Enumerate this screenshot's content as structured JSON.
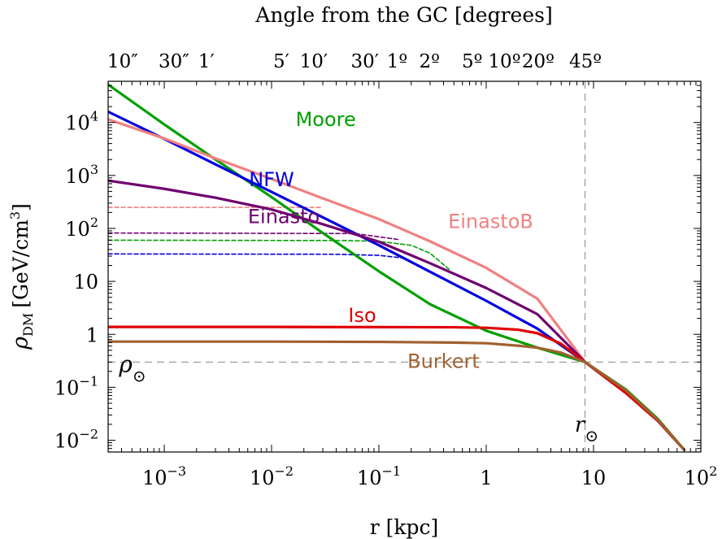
{
  "chart_data": {
    "type": "line",
    "title": "",
    "top_axis_label": "Angle from the GC [degrees]",
    "top_ticks": [
      {
        "label": "10″",
        "r": 0.00041
      },
      {
        "label": "30″",
        "r": 0.00123
      },
      {
        "label": "1′",
        "r": 0.00247
      },
      {
        "label": "5′",
        "r": 0.0123
      },
      {
        "label": "10′",
        "r": 0.0247
      },
      {
        "label": "30′",
        "r": 0.074
      },
      {
        "label": "1º",
        "r": 0.148
      },
      {
        "label": "2º",
        "r": 0.296
      },
      {
        "label": "5º",
        "r": 0.74
      },
      {
        "label": "10º",
        "r": 1.48
      },
      {
        "label": "20º",
        "r": 3.05
      },
      {
        "label": "45º",
        "r": 8.4
      }
    ],
    "xlabel": "r [kpc]",
    "ylabel": "ρ",
    "ylabel_sub": "DM",
    "ylabel_unit": "[GeV/cm",
    "ylabel_unit_sup": "3",
    "ylabel_unit_close": "]",
    "x_scale": "log",
    "y_scale": "log",
    "xlim": [
      0.0003,
      100
    ],
    "ylim": [
      0.006,
      60000
    ],
    "x_ticks": [
      {
        "value": 0.001,
        "label": "10",
        "sup": "−3"
      },
      {
        "value": 0.01,
        "label": "10",
        "sup": "−2"
      },
      {
        "value": 0.1,
        "label": "10",
        "sup": "−1"
      },
      {
        "value": 1,
        "label": "1",
        "sup": ""
      },
      {
        "value": 10,
        "label": "10",
        "sup": ""
      },
      {
        "value": 100,
        "label": "10",
        "sup": "2"
      }
    ],
    "y_ticks": [
      {
        "value": 0.01,
        "label": "10",
        "sup": "−2"
      },
      {
        "value": 0.1,
        "label": "10",
        "sup": "−1"
      },
      {
        "value": 1,
        "label": "1",
        "sup": ""
      },
      {
        "value": 10,
        "label": "10",
        "sup": ""
      },
      {
        "value": 100,
        "label": "10",
        "sup": "2"
      },
      {
        "value": 1000,
        "label": "10",
        "sup": "3"
      },
      {
        "value": 10000,
        "label": "10",
        "sup": "4"
      }
    ],
    "reference": {
      "r_sun": 8.33,
      "rho_sun": 0.3,
      "r_label": "r",
      "rho_label": "ρ",
      "sun_symbol": "⊙"
    },
    "series": [
      {
        "name": "Moore",
        "color": "#00a000",
        "label_r": 0.032,
        "label_rho": 11000,
        "x": [
          0.0003,
          0.001,
          0.003,
          0.01,
          0.03,
          0.1,
          0.3,
          1,
          3,
          8.33,
          20,
          40,
          70
        ],
        "y": [
          52000,
          9200,
          2000,
          390,
          82,
          15.5,
          3.7,
          1.17,
          0.56,
          0.3,
          0.091,
          0.025,
          0.0066
        ]
      },
      {
        "name": "NFW",
        "color": "#0000e0",
        "label_r": 0.01,
        "label_rho": 800,
        "x": [
          0.0003,
          0.001,
          0.003,
          0.01,
          0.03,
          0.1,
          0.3,
          1,
          3,
          8.33,
          20,
          40,
          70
        ],
        "y": [
          16000,
          4900,
          1620,
          490,
          162,
          48,
          15.2,
          4.3,
          1.28,
          0.3,
          0.079,
          0.023,
          0.0066
        ]
      },
      {
        "name": "EinastoB",
        "color": "#f08080",
        "label_r": 1.1,
        "label_rho": 130,
        "x": [
          0.0003,
          0.001,
          0.003,
          0.01,
          0.03,
          0.1,
          0.3,
          1,
          3,
          8.33,
          20,
          40,
          70
        ],
        "y": [
          11500,
          5000,
          2100,
          860,
          370,
          150,
          57,
          18,
          4.7,
          0.3,
          0.081,
          0.024,
          0.0066
        ]
      },
      {
        "name": "Einasto",
        "color": "#700070",
        "label_r": 0.013,
        "label_rho": 160,
        "x": [
          0.0003,
          0.001,
          0.003,
          0.01,
          0.03,
          0.1,
          0.3,
          1,
          3,
          8.33,
          20,
          40,
          70
        ],
        "y": [
          800,
          560,
          380,
          228,
          120,
          56,
          22,
          7.5,
          2.4,
          0.3,
          0.079,
          0.023,
          0.0066
        ]
      },
      {
        "name": "Iso",
        "color": "#e00000",
        "label_r": 0.07,
        "label_rho": 2.2,
        "x": [
          0.0003,
          0.001,
          0.01,
          0.1,
          0.5,
          1,
          2,
          3,
          5,
          8.33,
          20,
          40,
          70
        ],
        "y": [
          1.38,
          1.38,
          1.38,
          1.37,
          1.36,
          1.33,
          1.22,
          1.05,
          0.66,
          0.3,
          0.078,
          0.023,
          0.0066
        ]
      },
      {
        "name": "Burkert",
        "color": "#a06030",
        "label_r": 0.4,
        "label_rho": 0.3,
        "x": [
          0.0003,
          0.001,
          0.01,
          0.1,
          0.5,
          1,
          2,
          3,
          5,
          8.33,
          20,
          40,
          70
        ],
        "y": [
          0.73,
          0.73,
          0.73,
          0.72,
          0.7,
          0.68,
          0.61,
          0.56,
          0.45,
          0.3,
          0.088,
          0.024,
          0.0066
        ]
      },
      {
        "name": "",
        "color": "#f08080",
        "dashed": true,
        "x": [
          0.0003,
          0.03
        ],
        "y": [
          250,
          250
        ]
      },
      {
        "name": "",
        "color": "#700070",
        "dashed": true,
        "x": [
          0.0003,
          0.06,
          0.15
        ],
        "y": [
          82,
          80,
          62
        ]
      },
      {
        "name": "",
        "color": "#00a000",
        "dashed": true,
        "x": [
          0.0003,
          0.05,
          0.1,
          0.2,
          0.3,
          0.45
        ],
        "y": [
          60,
          59,
          57,
          48,
          34,
          17
        ]
      },
      {
        "name": "",
        "color": "#0000e0",
        "dashed": true,
        "x": [
          0.0003,
          0.04,
          0.1,
          0.16
        ],
        "y": [
          33,
          32.5,
          31,
          28
        ]
      }
    ]
  }
}
